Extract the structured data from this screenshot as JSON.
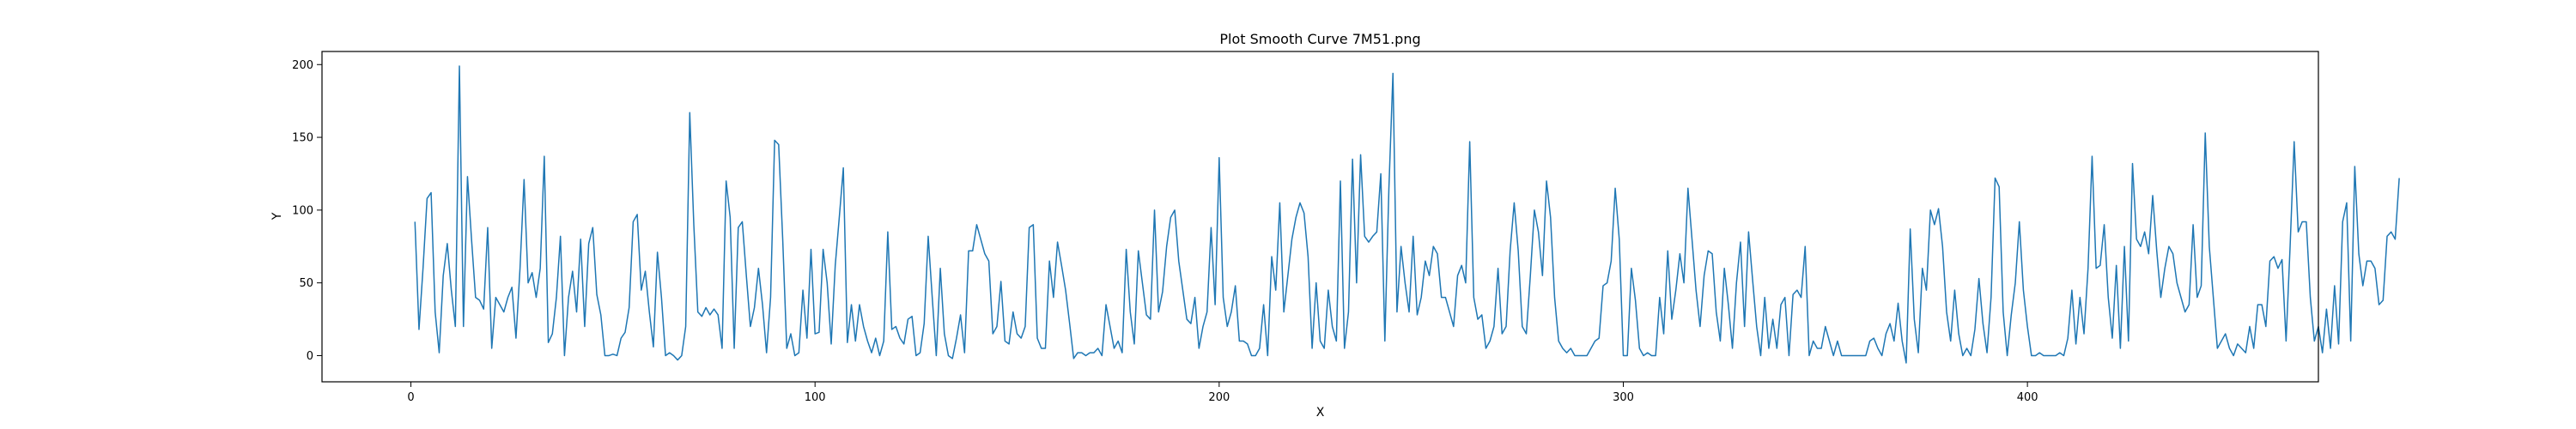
{
  "chart_data": {
    "type": "line",
    "title": "Plot Smooth Curve 7M51.png",
    "xlabel": "X",
    "ylabel": "Y",
    "xlim": [
      -22,
      472
    ],
    "ylim": [
      -18,
      209
    ],
    "xticks": [
      0,
      100,
      200,
      300,
      400
    ],
    "yticks": [
      0,
      50,
      100,
      150,
      200
    ],
    "grid": false,
    "legend": "none",
    "series": [
      {
        "color": "#1f77b4",
        "x_start": 1,
        "x_step": 1,
        "values": [
          92,
          18,
          60,
          108,
          112,
          30,
          2,
          55,
          77,
          45,
          20,
          199,
          20,
          123,
          80,
          40,
          38,
          32,
          88,
          5,
          40,
          35,
          30,
          40,
          47,
          12,
          60,
          121,
          50,
          57,
          40,
          60,
          137,
          9,
          15,
          40,
          82,
          0,
          40,
          58,
          30,
          80,
          20,
          77,
          88,
          42,
          28,
          0,
          0,
          1,
          0,
          12,
          16,
          33,
          92,
          97,
          45,
          58,
          30,
          6,
          71,
          40,
          0,
          2,
          0,
          -3,
          0,
          20,
          167,
          90,
          30,
          27,
          33,
          28,
          32,
          28,
          5,
          120,
          95,
          5,
          88,
          92,
          55,
          20,
          33,
          60,
          35,
          2,
          40,
          148,
          145,
          80,
          5,
          15,
          0,
          2,
          45,
          12,
          73,
          15,
          16,
          73,
          50,
          8,
          62,
          95,
          129,
          9,
          35,
          10,
          35,
          20,
          10,
          2,
          12,
          0,
          10,
          85,
          18,
          20,
          12,
          8,
          25,
          27,
          0,
          2,
          22,
          82,
          40,
          0,
          60,
          15,
          0,
          -2,
          12,
          28,
          2,
          72,
          72,
          90,
          80,
          70,
          65,
          15,
          20,
          51,
          10,
          8,
          30,
          15,
          12,
          20,
          88,
          90,
          12,
          5,
          5,
          65,
          40,
          78,
          62,
          45,
          22,
          -2,
          2,
          2,
          0,
          2,
          2,
          5,
          0,
          35,
          20,
          5,
          10,
          2,
          73,
          30,
          8,
          72,
          50,
          28,
          25,
          100,
          30,
          44,
          75,
          95,
          100,
          65,
          45,
          25,
          22,
          40,
          5,
          20,
          30,
          88,
          35,
          136,
          40,
          20,
          30,
          48,
          10,
          10,
          8,
          0,
          0,
          5,
          35,
          0,
          68,
          45,
          105,
          30,
          55,
          80,
          95,
          105,
          98,
          68,
          5,
          50,
          10,
          5,
          45,
          20,
          10,
          120,
          5,
          30,
          135,
          50,
          138,
          82,
          78,
          82,
          85,
          125,
          10,
          115,
          194,
          30,
          75,
          50,
          30,
          82,
          28,
          40,
          65,
          55,
          75,
          70,
          40,
          40,
          30,
          20,
          55,
          62,
          50,
          147,
          40,
          25,
          28,
          5,
          10,
          20,
          60,
          15,
          20,
          72,
          105,
          72,
          20,
          15,
          55,
          100,
          85,
          55,
          120,
          95,
          40,
          10,
          5,
          2,
          5,
          0,
          0,
          0,
          0,
          5,
          10,
          12,
          48,
          50,
          65,
          115,
          80,
          0,
          0,
          60,
          38,
          5,
          0,
          2,
          0,
          0,
          40,
          15,
          72,
          25,
          45,
          70,
          50,
          115,
          80,
          45,
          20,
          55,
          72,
          70,
          30,
          10,
          60,
          35,
          5,
          50,
          78,
          20,
          85,
          52,
          20,
          0,
          40,
          5,
          25,
          5,
          35,
          40,
          0,
          42,
          45,
          40,
          75,
          0,
          10,
          5,
          5,
          20,
          10,
          0,
          10,
          0,
          0,
          0,
          0,
          0,
          0,
          0,
          10,
          12,
          5,
          0,
          15,
          22,
          10,
          36,
          10,
          -5,
          87,
          25,
          2,
          60,
          45,
          100,
          90,
          101,
          75,
          30,
          10,
          45,
          15,
          0,
          5,
          0,
          18,
          53,
          22,
          2,
          40,
          122,
          116,
          30,
          0,
          28,
          50,
          92,
          45,
          20,
          0,
          0,
          2,
          0,
          0,
          0,
          0,
          2,
          0,
          12,
          45,
          8,
          40,
          15,
          60,
          137,
          60,
          62,
          90,
          40,
          12,
          62,
          5,
          75,
          10,
          132,
          80,
          75,
          85,
          70,
          110,
          72,
          40,
          60,
          75,
          70,
          50,
          40,
          30,
          35,
          90,
          40,
          48,
          153,
          75,
          40,
          5,
          10,
          15,
          5,
          0,
          8,
          5,
          2,
          20,
          5,
          35,
          35,
          20,
          65,
          68,
          60,
          66,
          10,
          75,
          147,
          85,
          92,
          92,
          40,
          10,
          20,
          2,
          32,
          5,
          48,
          8,
          92,
          105,
          10,
          130,
          70,
          48,
          65,
          65,
          60,
          35,
          38,
          82,
          85,
          80,
          122
        ]
      }
    ]
  }
}
